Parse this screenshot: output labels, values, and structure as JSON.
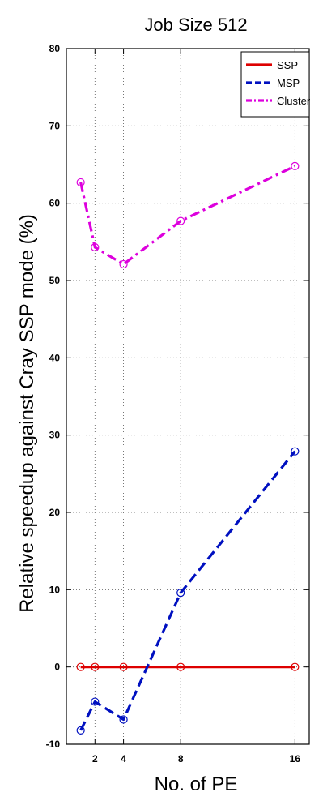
{
  "chart_data": {
    "type": "line",
    "title": "Job Size 512",
    "xlabel": "No. of PE",
    "ylabel": "Relative speedup against Cray SSP mode (%)",
    "x_ticks": [
      2,
      4,
      8,
      16
    ],
    "y_ticks": [
      -10,
      0,
      10,
      20,
      30,
      40,
      50,
      60,
      70,
      80
    ],
    "xlim": [
      0,
      17
    ],
    "ylim": [
      -10,
      80
    ],
    "grid": true,
    "legend_position": "top-right",
    "series": [
      {
        "name": "SSP",
        "color": "#dd0000",
        "style": "solid",
        "points": [
          [
            1,
            0
          ],
          [
            2,
            0
          ],
          [
            4,
            0
          ],
          [
            8,
            0
          ],
          [
            16,
            0
          ]
        ]
      },
      {
        "name": "MSP",
        "color": "#0010c0",
        "style": "dashed",
        "points": [
          [
            1,
            -8.2
          ],
          [
            2,
            -4.5
          ],
          [
            4,
            -6.8
          ],
          [
            8,
            9.6
          ],
          [
            16,
            27.9
          ]
        ]
      },
      {
        "name": "Cluster",
        "color": "#dd00dd",
        "style": "dashdot",
        "points": [
          [
            1,
            62.7
          ],
          [
            2,
            54.3
          ],
          [
            4,
            52.1
          ],
          [
            8,
            57.7
          ],
          [
            16,
            64.8
          ]
        ]
      }
    ]
  }
}
